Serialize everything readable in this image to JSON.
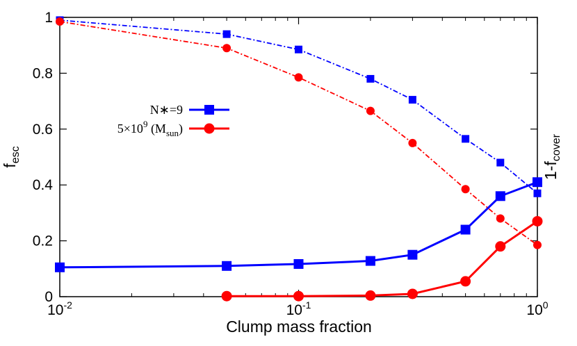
{
  "chart_data": {
    "type": "line",
    "title": "",
    "xlabel": "Clump mass fraction",
    "ylabel_left": "f",
    "ylabel_left_sub": "esc",
    "ylabel_right": "1-f",
    "ylabel_right_sub": "cover",
    "x_scale": "log",
    "xlim": [
      0.01,
      1.0
    ],
    "ylim": [
      0,
      1
    ],
    "x_ticks": [
      0.01,
      0.1,
      1.0
    ],
    "x_tick_labels": [
      {
        "base": "10",
        "exp": "-2"
      },
      {
        "base": "10",
        "exp": "-1"
      },
      {
        "base": "10",
        "exp": "0"
      }
    ],
    "y_ticks": [
      0,
      0.2,
      0.4,
      0.6,
      0.8,
      1.0
    ],
    "y_tick_labels": [
      "0",
      "0.2",
      "0.4",
      "0.6",
      "0.8",
      "1"
    ],
    "grid": false,
    "legend_position": "center-left",
    "legend": [
      {
        "text": "N∗=9",
        "color": "#0000ff",
        "marker": "square"
      },
      {
        "text_main": "5×10",
        "text_sup": "9",
        "text_rest": " (M",
        "text_sub": "sun",
        "text_end": ")",
        "color": "#ff0000",
        "marker": "circle"
      }
    ],
    "series": [
      {
        "color": "#0000ff",
        "marker": "square",
        "line": "solid",
        "axis": "left",
        "x": [
          0.01,
          0.05,
          0.1,
          0.2,
          0.3,
          0.5,
          0.7,
          1.0
        ],
        "y": [
          0.105,
          0.11,
          0.117,
          0.128,
          0.15,
          0.24,
          0.36,
          0.41
        ]
      },
      {
        "color": "#ff0000",
        "marker": "circle",
        "line": "solid",
        "axis": "left",
        "x": [
          0.05,
          0.1,
          0.2,
          0.3,
          0.5,
          0.7,
          1.0
        ],
        "y": [
          0.002,
          0.002,
          0.004,
          0.01,
          0.055,
          0.18,
          0.27
        ]
      },
      {
        "color": "#0000ff",
        "marker": "square",
        "line": "dashdot",
        "axis": "right",
        "x": [
          0.01,
          0.05,
          0.1,
          0.2,
          0.3,
          0.5,
          0.7,
          1.0
        ],
        "y": [
          0.99,
          0.94,
          0.885,
          0.78,
          0.705,
          0.565,
          0.48,
          0.37
        ]
      },
      {
        "color": "#ff0000",
        "marker": "circle",
        "line": "dashdot",
        "axis": "right",
        "x": [
          0.01,
          0.05,
          0.1,
          0.2,
          0.3,
          0.5,
          0.7,
          1.0
        ],
        "y": [
          0.985,
          0.89,
          0.785,
          0.665,
          0.55,
          0.385,
          0.28,
          0.185
        ]
      }
    ]
  }
}
